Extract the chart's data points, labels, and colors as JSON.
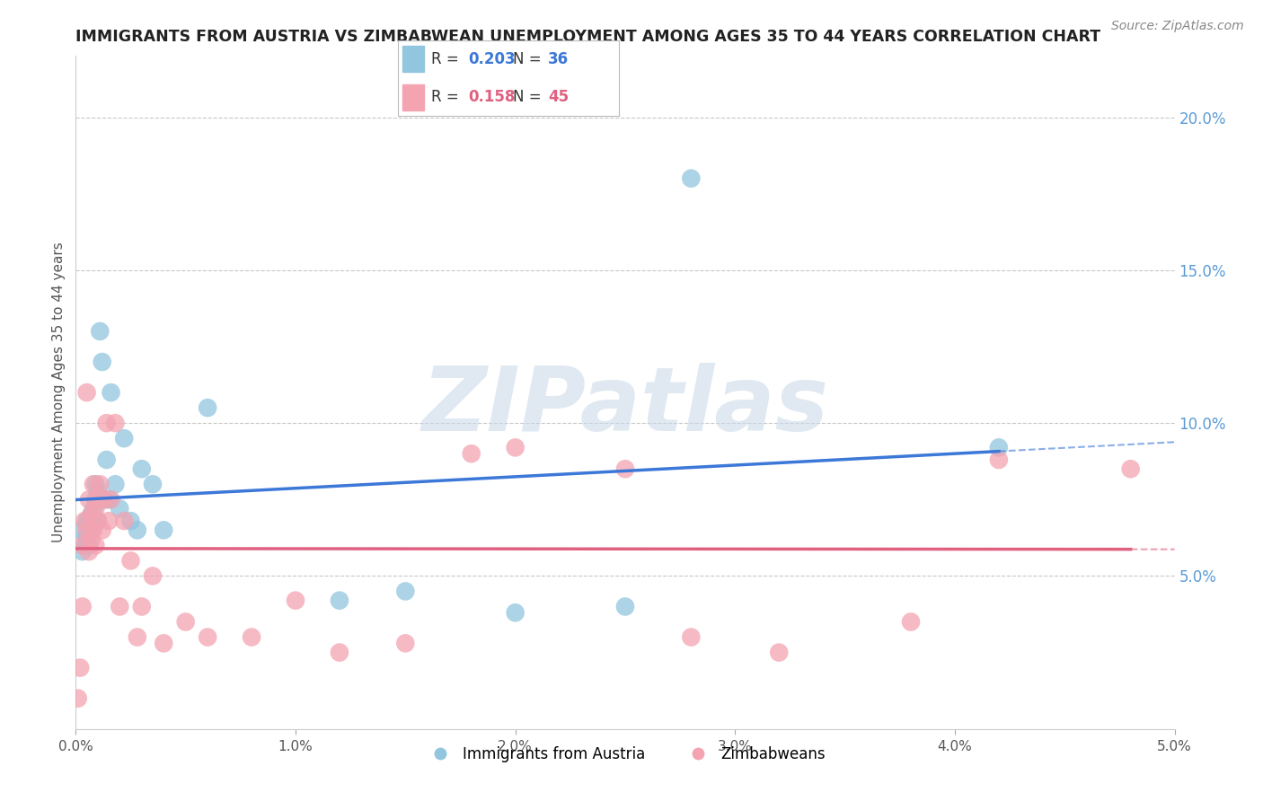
{
  "title": "IMMIGRANTS FROM AUSTRIA VS ZIMBABWEAN UNEMPLOYMENT AMONG AGES 35 TO 44 YEARS CORRELATION CHART",
  "source": "Source: ZipAtlas.com",
  "ylabel": "Unemployment Among Ages 35 to 44 years",
  "xlim": [
    0.0,
    0.05
  ],
  "ylim": [
    0.0,
    0.22
  ],
  "x_ticks": [
    0.0,
    0.01,
    0.02,
    0.03,
    0.04,
    0.05
  ],
  "x_tick_labels": [
    "0.0%",
    "1.0%",
    "2.0%",
    "3.0%",
    "4.0%",
    "5.0%"
  ],
  "y_ticks_right": [
    0.05,
    0.1,
    0.15,
    0.2
  ],
  "y_tick_labels_right": [
    "5.0%",
    "10.0%",
    "15.0%",
    "20.0%"
  ],
  "right_axis_color": "#5b9bd5",
  "grid_color": "#c8c8c8",
  "background_color": "#ffffff",
  "series": [
    {
      "name": "Immigrants from Austria",
      "color": "#92c5de",
      "r": 0.203,
      "n": 36,
      "line_color": "#3c78d8",
      "x": [
        0.0002,
        0.0003,
        0.0004,
        0.0005,
        0.0005,
        0.0006,
        0.0006,
        0.0007,
        0.0007,
        0.0008,
        0.0008,
        0.0009,
        0.0009,
        0.001,
        0.001,
        0.0011,
        0.0012,
        0.0013,
        0.0014,
        0.0015,
        0.0016,
        0.0018,
        0.002,
        0.0022,
        0.0025,
        0.0028,
        0.003,
        0.0035,
        0.004,
        0.006,
        0.012,
        0.015,
        0.02,
        0.025,
        0.028,
        0.042
      ],
      "y": [
        0.065,
        0.058,
        0.06,
        0.063,
        0.068,
        0.06,
        0.068,
        0.07,
        0.065,
        0.072,
        0.068,
        0.08,
        0.075,
        0.078,
        0.068,
        0.13,
        0.12,
        0.075,
        0.088,
        0.075,
        0.11,
        0.08,
        0.072,
        0.095,
        0.068,
        0.065,
        0.085,
        0.08,
        0.065,
        0.105,
        0.042,
        0.045,
        0.038,
        0.04,
        0.18,
        0.092
      ]
    },
    {
      "name": "Zimbabweans",
      "color": "#f4a3b1",
      "r": 0.158,
      "n": 45,
      "line_color": "#e06080",
      "x": [
        0.0001,
        0.0002,
        0.0003,
        0.0003,
        0.0004,
        0.0005,
        0.0005,
        0.0006,
        0.0006,
        0.0007,
        0.0007,
        0.0008,
        0.0008,
        0.0009,
        0.0009,
        0.001,
        0.001,
        0.0011,
        0.0012,
        0.0013,
        0.0014,
        0.0015,
        0.0016,
        0.0018,
        0.002,
        0.0022,
        0.0025,
        0.0028,
        0.003,
        0.0035,
        0.004,
        0.005,
        0.006,
        0.008,
        0.01,
        0.012,
        0.015,
        0.018,
        0.02,
        0.025,
        0.028,
        0.032,
        0.038,
        0.042,
        0.048
      ],
      "y": [
        0.01,
        0.02,
        0.06,
        0.04,
        0.068,
        0.11,
        0.065,
        0.058,
        0.075,
        0.07,
        0.062,
        0.08,
        0.065,
        0.072,
        0.06,
        0.075,
        0.068,
        0.08,
        0.065,
        0.075,
        0.1,
        0.068,
        0.075,
        0.1,
        0.04,
        0.068,
        0.055,
        0.03,
        0.04,
        0.05,
        0.028,
        0.035,
        0.03,
        0.03,
        0.042,
        0.025,
        0.028,
        0.09,
        0.092,
        0.085,
        0.03,
        0.025,
        0.035,
        0.088,
        0.085
      ]
    }
  ],
  "watermark_text": "ZIPatlas",
  "watermark_color": "#c8d8e8",
  "legend_border_color": "#aaaaaa"
}
